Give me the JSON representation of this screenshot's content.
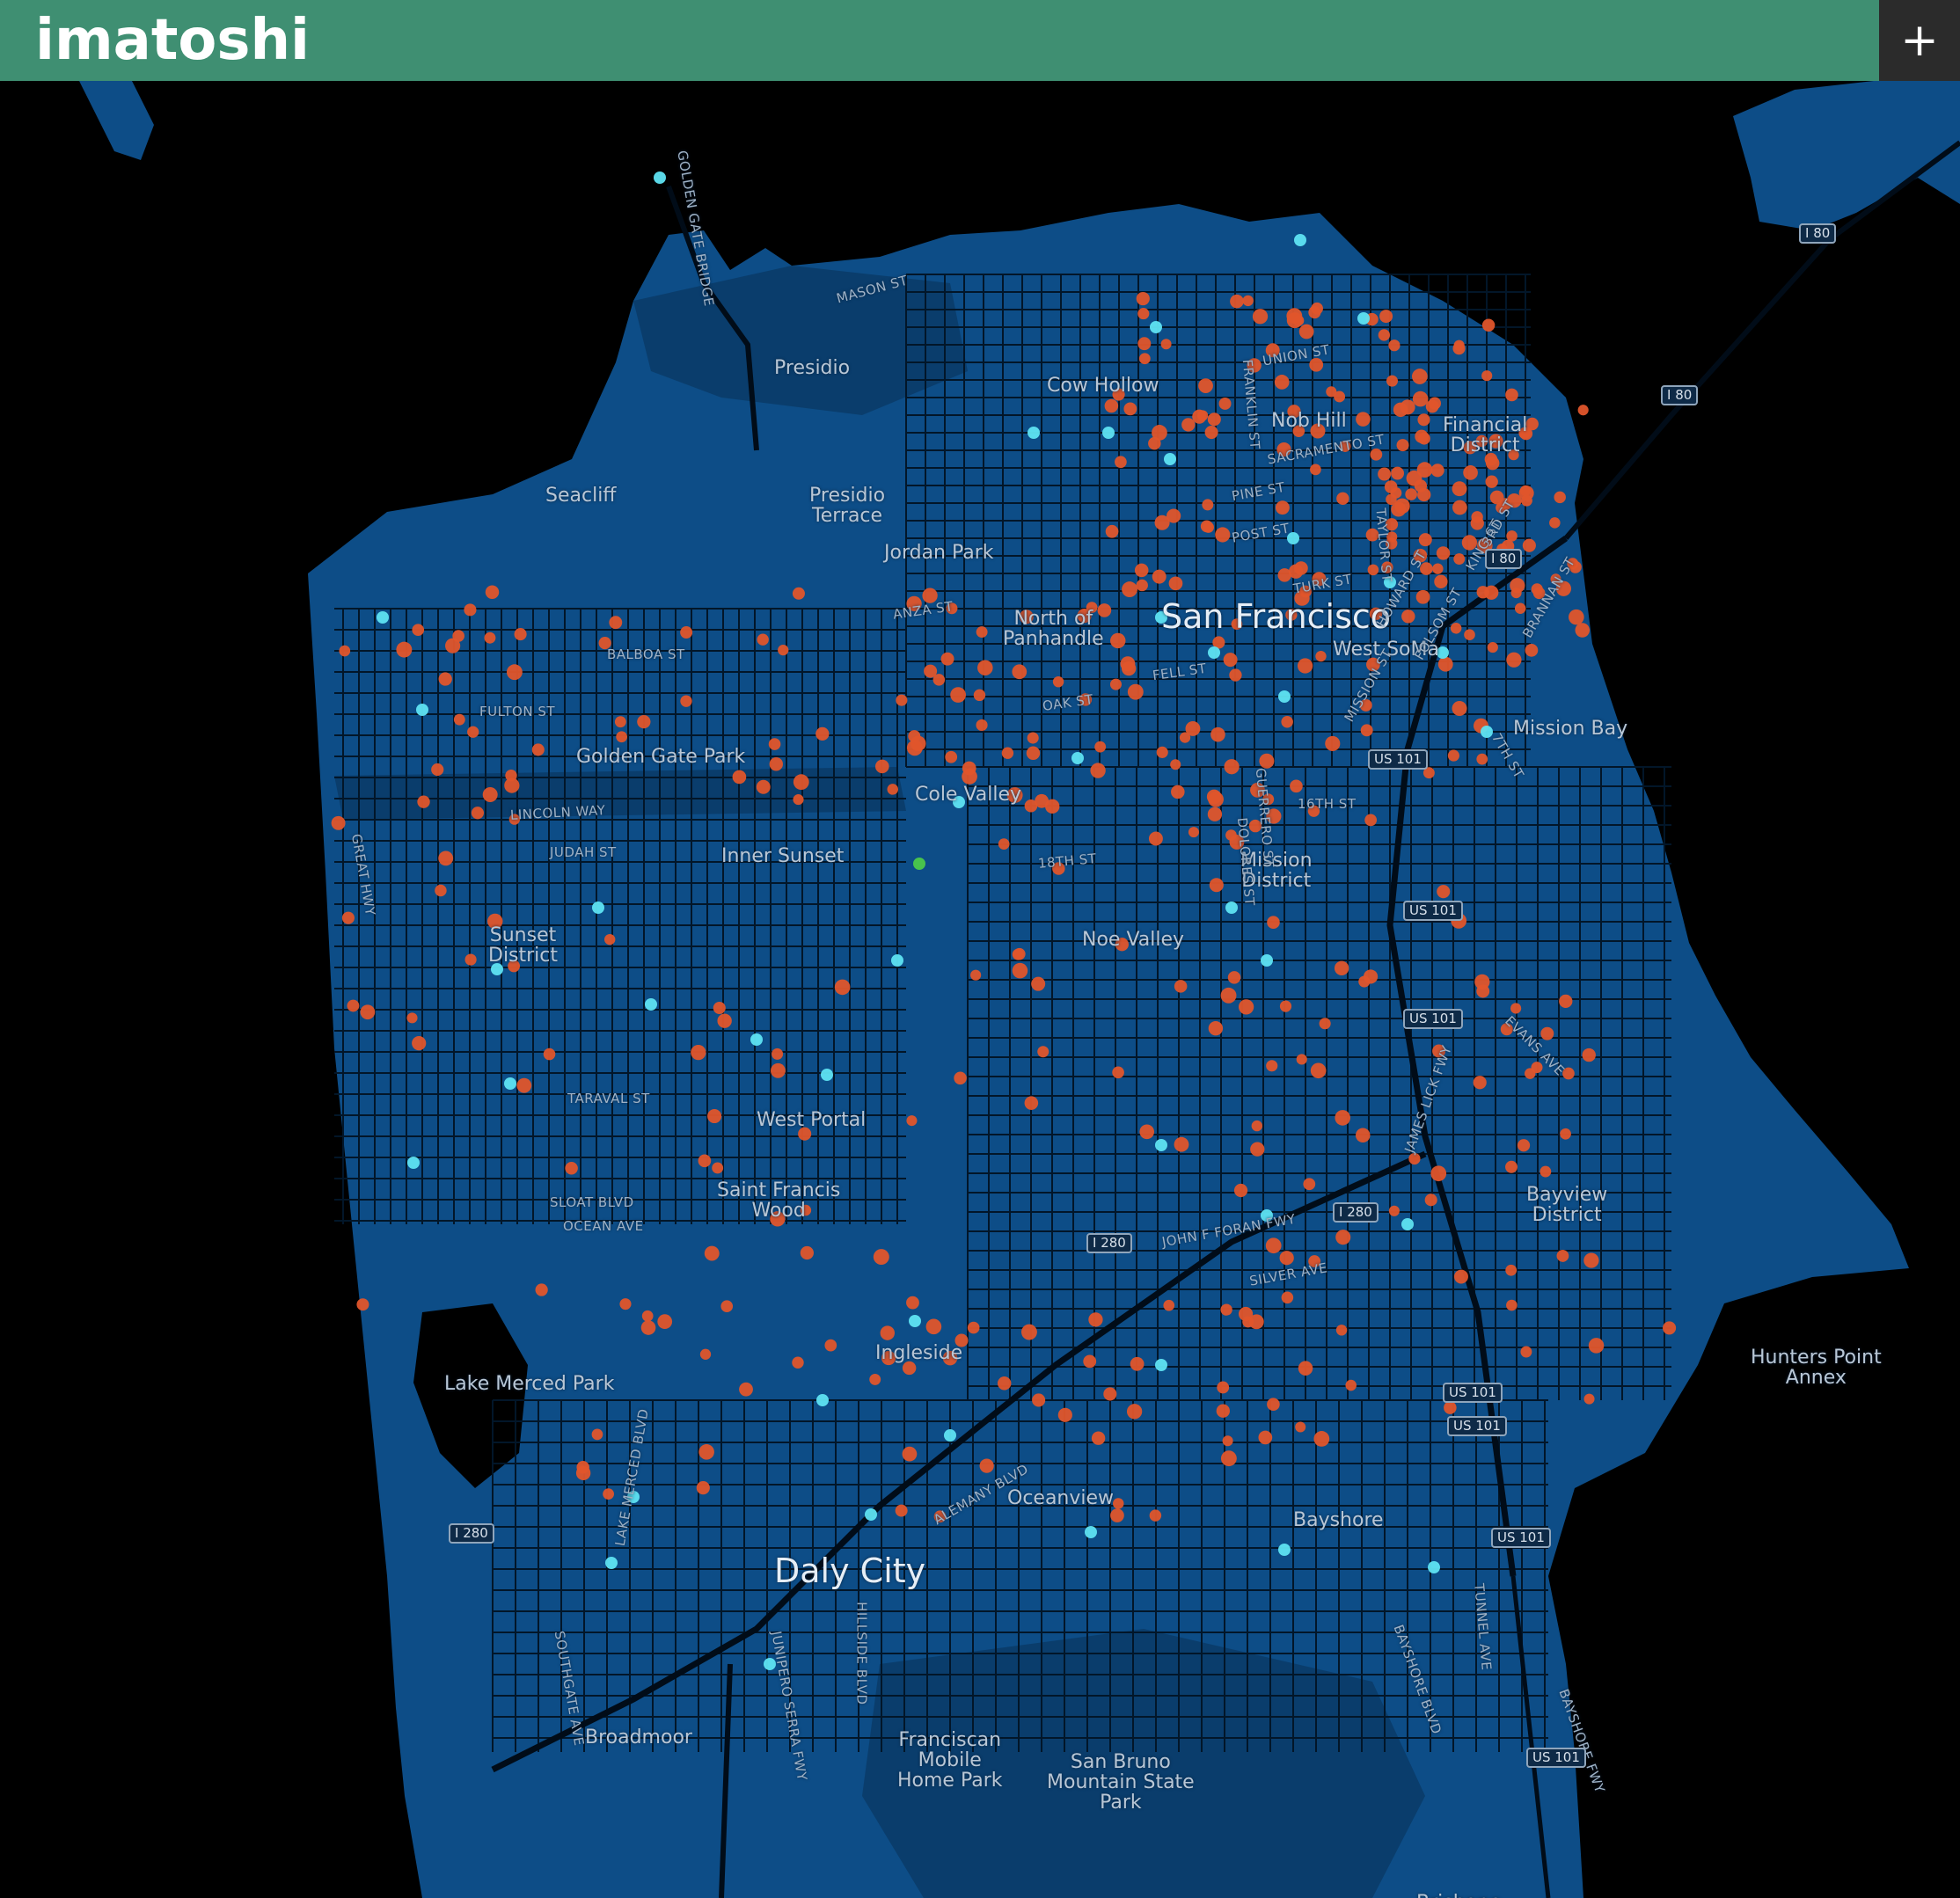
{
  "app": {
    "title": "imatoshi",
    "add_button": "+"
  },
  "map": {
    "colors": {
      "land": "#0d4d87",
      "water": "#000000",
      "roads": "#021629",
      "park": "#0a3d6c",
      "topbar": "#3f8f72",
      "dot_orange": "#e0552b",
      "dot_cyan": "#5fe3f2",
      "dot_green": "#4cc94a"
    },
    "place_labels": [
      "San Francisco",
      "Daly City",
      "Presidio",
      "Seacliff",
      "Presidio\nTerrace",
      "Jordan Park",
      "Cow Hollow",
      "Nob Hill",
      "Financial\nDistrict",
      "North of\nPanhandle",
      "West SoMa",
      "Mission Bay",
      "Golden Gate Park",
      "Cole Valley",
      "Inner Sunset",
      "Sunset\nDistrict",
      "Mission\nDistrict",
      "Noe Valley",
      "West Portal",
      "Saint Francis\nWood",
      "Bayview\nDistrict",
      "Hunters Point\nAnnex",
      "Lake Merced Park",
      "Ingleside",
      "Oceanview",
      "Bayshore",
      "Broadmoor",
      "Franciscan\nMobile\nHome Park",
      "San Bruno\nMountain State\nPark",
      "Brisbane"
    ],
    "street_labels": [
      "GOLDEN GATE BRIDGE",
      "MASON ST",
      "UNION ST",
      "SACRAMENTO ST",
      "PINE ST",
      "POST ST",
      "TURK ST",
      "BALBOA ST",
      "FULTON ST",
      "LINCOLN WAY",
      "JUDAH ST",
      "TARAVAL ST",
      "SLOAT BLVD",
      "OCEAN AVE",
      "ANZA ST",
      "FELL ST",
      "OAK ST",
      "16TH ST",
      "18TH ST",
      "GREAT HWY",
      "JOHN F FORAN FWY",
      "SILVER AVE",
      "ALEMANY BLVD",
      "EVANS AVE",
      "BAYSHORE BLVD",
      "TUNNEL AVE",
      "HILLSIDE BLVD",
      "JUNIPERO SERRA FWY",
      "SOUTHGATE AVE",
      "LAKE MERCED BLVD",
      "FRANKLIN ST",
      "GUERRERO ST",
      "DOLORES ST",
      "HOWARD ST",
      "FOLSOM ST",
      "BRANNAN ST",
      "KING ST",
      "3RD ST",
      "TAYLOR ST",
      "7TH ST",
      "JAMES LICK FWY",
      "MISSION ST",
      "BAYSHORE FWY"
    ],
    "shields": [
      "I 80",
      "I 80",
      "I 80",
      "US 101",
      "US 101",
      "US 101",
      "US 101",
      "US 101",
      "US 101",
      "US 101",
      "I 280",
      "I 280",
      "I 280"
    ]
  }
}
